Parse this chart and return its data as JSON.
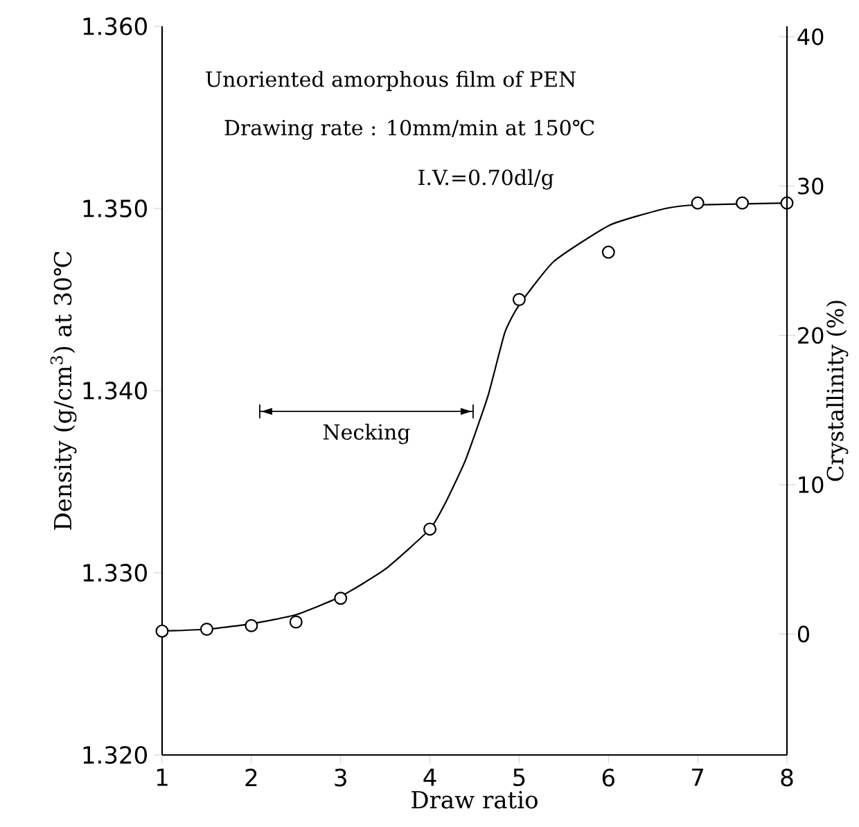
{
  "chart_data": {
    "type": "scatter",
    "xlabel": "Draw ratio",
    "ylabel": "Density (g/cm$^{3}$) at 30℃",
    "y2label": "Crystallinity (%)",
    "annotations": [
      "Unoriented amorphous film of PEN",
      "Drawing rate : 10mm/min at 150℃",
      "I.V.=0.70dl/g",
      "Necking"
    ],
    "xlim": [
      1,
      8
    ],
    "xticks": [
      1,
      2,
      3,
      4,
      5,
      6,
      7,
      8
    ],
    "ylim": [
      1.32,
      1.36
    ],
    "yticks": [
      {
        "value": 1.32,
        "label": "1.320"
      },
      {
        "value": 1.33,
        "label": "1.330"
      },
      {
        "value": 1.34,
        "label": "1.340"
      },
      {
        "value": 1.35,
        "label": "1.350"
      },
      {
        "value": 1.36,
        "label": "1.360"
      }
    ],
    "y2lim": [
      -8.1,
      40.7
    ],
    "y2ticks": [
      0,
      10,
      20,
      30,
      40
    ],
    "series": [
      {
        "marker": "circle",
        "color": "#000000",
        "x": [
          1,
          1.5,
          2,
          2.5,
          3,
          4,
          5,
          6,
          7,
          7.5,
          8
        ],
        "values": [
          1.3268,
          1.3269,
          1.3271,
          1.3273,
          1.3286,
          1.3324,
          1.345,
          1.3476,
          1.3503,
          1.3503,
          1.3503
        ]
      },
      {
        "type": "line",
        "marker": "none",
        "line_style": "solid",
        "color": "#000000",
        "x": [
          1,
          1.5,
          2,
          2.5,
          3,
          3.5,
          4,
          4.18,
          4.4,
          4.65,
          4.84,
          5.0,
          5.39,
          6.02,
          6.64,
          7,
          8
        ],
        "values": [
          1.3268,
          1.3269,
          1.3272,
          1.3277,
          1.3287,
          1.3302,
          1.3324,
          1.3339,
          1.3362,
          1.3397,
          1.3432,
          1.3447,
          1.3471,
          1.3491,
          1.35,
          1.3502,
          1.3503
        ]
      }
    ]
  }
}
